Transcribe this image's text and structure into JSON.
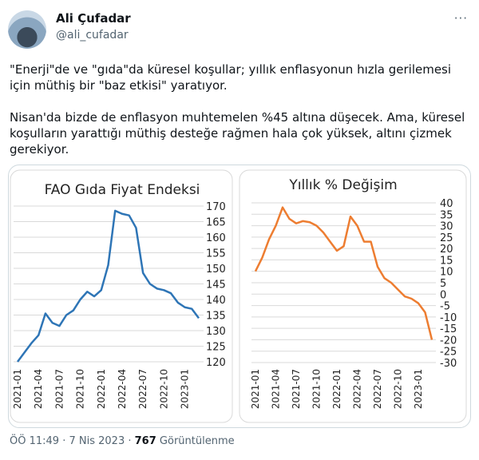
{
  "author": {
    "name": "Ali Çufadar",
    "handle": "@ali_cufadar",
    "more": "···"
  },
  "text": {
    "paragraphs": [
      "\"Enerji\"de ve \"gıda\"da küresel koşullar; yıllık enflasyonun hızla gerilemesi için müthiş bir \"baz etkisi\" yaratıyor.",
      "Nisan'da bizde de enflasyon muhtemelen %45 altına düşecek. Ama, küresel koşulların yarattığı müthiş desteğe rağmen hala çok yüksek, altını çizmek gerekiyor."
    ]
  },
  "footer": {
    "time": "ÖÖ 11:49",
    "separator": "·",
    "date": "7 Nis 2023",
    "views": "767",
    "views_label": "Görüntülenme"
  },
  "chart_data": [
    {
      "type": "line",
      "title": "FAO Gıda Fiyat Endeksi",
      "color": "#2e75b6",
      "grid": true,
      "categories": [
        "2021-01",
        null,
        null,
        "2021-04",
        null,
        null,
        "2021-07",
        null,
        null,
        "2021-10",
        null,
        null,
        "2022-01",
        null,
        null,
        "2022-04",
        null,
        null,
        "2022-07",
        null,
        null,
        "2022-10",
        null,
        null,
        "2023-01",
        null,
        null
      ],
      "values": [
        120,
        123,
        126,
        128.5,
        135.5,
        132.5,
        131.5,
        135,
        136.5,
        140,
        142.5,
        141,
        143,
        151,
        168.5,
        167.5,
        167,
        163,
        148.5,
        145,
        143.5,
        143,
        142,
        139,
        137.5,
        137,
        134
      ],
      "ylim": [
        120,
        170
      ],
      "yticks": [
        120,
        125,
        130,
        135,
        140,
        145,
        150,
        155,
        160,
        165,
        170
      ]
    },
    {
      "type": "line",
      "title": "Yıllık % Değişim",
      "color": "#ed7d31",
      "grid": true,
      "categories": [
        "2021-01",
        null,
        null,
        "2021-04",
        null,
        null,
        "2021-07",
        null,
        null,
        "2021-10",
        null,
        null,
        "2022-01",
        null,
        null,
        "2022-04",
        null,
        null,
        "2022-07",
        null,
        null,
        "2022-10",
        null,
        null,
        "2023-01",
        null,
        null
      ],
      "values": [
        10,
        16,
        24,
        30,
        38,
        33,
        31,
        32,
        31.5,
        30,
        27,
        23,
        19,
        21,
        34,
        30,
        23,
        23,
        12,
        7,
        5,
        2,
        -1,
        -2,
        -4,
        -8,
        -20
      ],
      "ylim": [
        -30,
        40
      ],
      "yticks": [
        -30,
        -25,
        -20,
        -15,
        -10,
        -5,
        0,
        5,
        10,
        15,
        20,
        25,
        30,
        35,
        40
      ]
    }
  ]
}
